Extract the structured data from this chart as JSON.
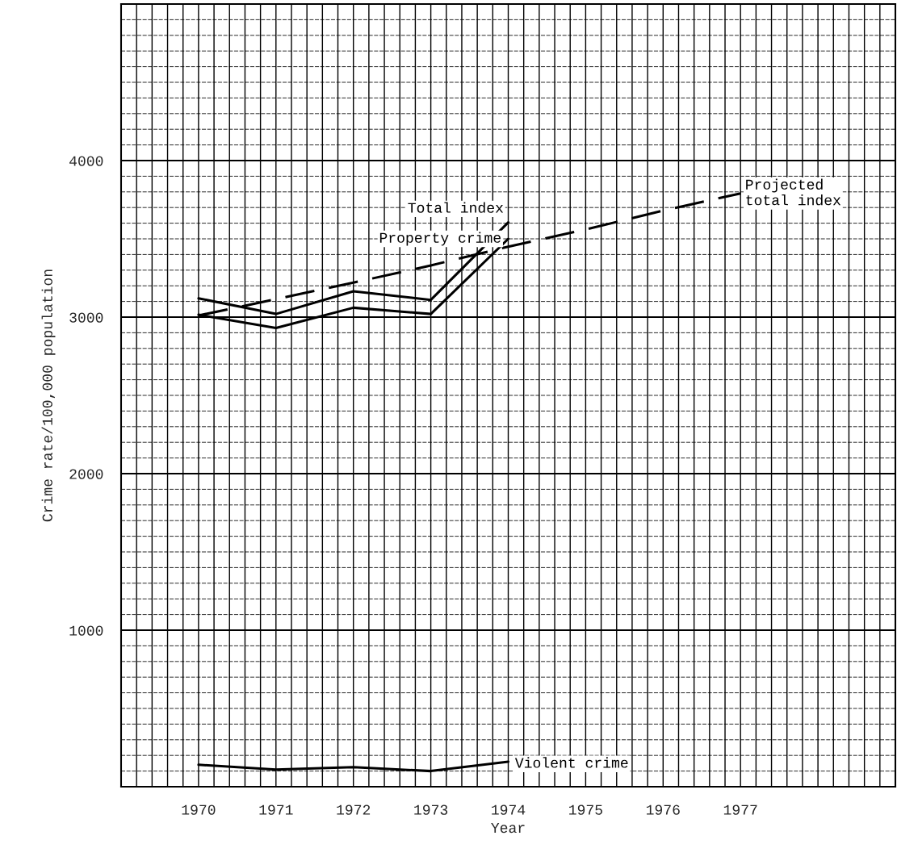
{
  "chart_data": {
    "type": "line",
    "xlabel": "Year",
    "ylabel": "Crime rate/100,000 population",
    "x": [
      1970,
      1971,
      1972,
      1973,
      1974
    ],
    "series": [
      {
        "name": "Total index",
        "color": "#000000",
        "values": [
          3120,
          3020,
          3165,
          3110,
          3605
        ]
      },
      {
        "name": "Property crime",
        "color": "#000000",
        "values": [
          3015,
          2930,
          3060,
          3020,
          3500
        ]
      },
      {
        "name": "Violent crime",
        "color": "#000000",
        "values": [
          140,
          110,
          125,
          100,
          160
        ]
      },
      {
        "name": "Projected\ntotal index",
        "color": "#000000",
        "line_style": "dashed",
        "x": [
          1970,
          1971,
          1972,
          1973,
          1974,
          1975,
          1976,
          1977
        ],
        "values": [
          3010,
          3115,
          3220,
          3330,
          3450,
          3560,
          3680,
          3790
        ]
      }
    ],
    "xlim": [
      1969,
      1979
    ],
    "xticks": [
      1970,
      1971,
      1972,
      1973,
      1974,
      1975,
      1976,
      1977
    ],
    "ylim": [
      0,
      5000
    ],
    "yticks": [
      1000,
      2000,
      3000,
      4000
    ],
    "grid": true,
    "marker": "none",
    "legend": false
  }
}
